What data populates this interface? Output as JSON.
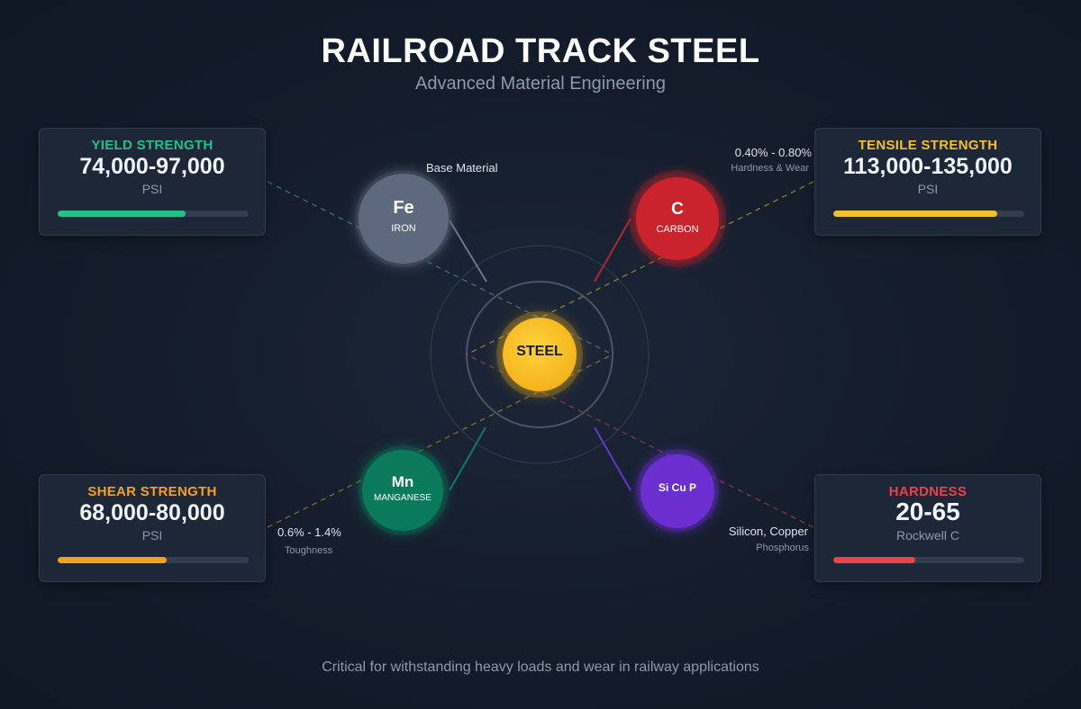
{
  "header": {
    "title": "RAILROAD TRACK STEEL",
    "subtitle": "Advanced Material Engineering"
  },
  "center": {
    "label": "STEEL"
  },
  "elements": {
    "iron": {
      "symbol": "Fe",
      "name": "IRON",
      "note": "Base Material",
      "color": "#5d6a7e"
    },
    "carbon": {
      "symbol": "C",
      "name": "CARBON",
      "note": "0.40% - 0.80%",
      "note_sub": "Hardness & Wear",
      "color": "#c9232d"
    },
    "manganese": {
      "symbol": "Mn",
      "name": "MANGANESE",
      "note": "0.6% - 1.4%",
      "note_sub": "Toughness",
      "color": "#0b7a5c"
    },
    "trace": {
      "symbol": "Si Cu P",
      "note": "Silicon, Copper",
      "note_sub": "Phosphorus",
      "color": "#6b2fd0"
    }
  },
  "properties": {
    "yield": {
      "label": "YIELD STRENGTH",
      "value": "74,000-97,000",
      "unit": "PSI",
      "color": "#22c08a",
      "level": 0.67
    },
    "tensile": {
      "label": "TENSILE STRENGTH",
      "value": "113,000-135,000",
      "unit": "PSI",
      "color": "#f2c02d",
      "level": 0.86
    },
    "shear": {
      "label": "SHEAR STRENGTH",
      "value": "68,000-80,000",
      "unit": "PSI",
      "color": "#f5a21a",
      "level": 0.57
    },
    "hardness": {
      "label": "HARDNESS",
      "value": "20-65",
      "unit": "Rockwell C",
      "color": "#e8434a",
      "level": 0.43
    }
  },
  "footer": {
    "text": "Critical for withstanding heavy loads and wear in railway applications"
  }
}
